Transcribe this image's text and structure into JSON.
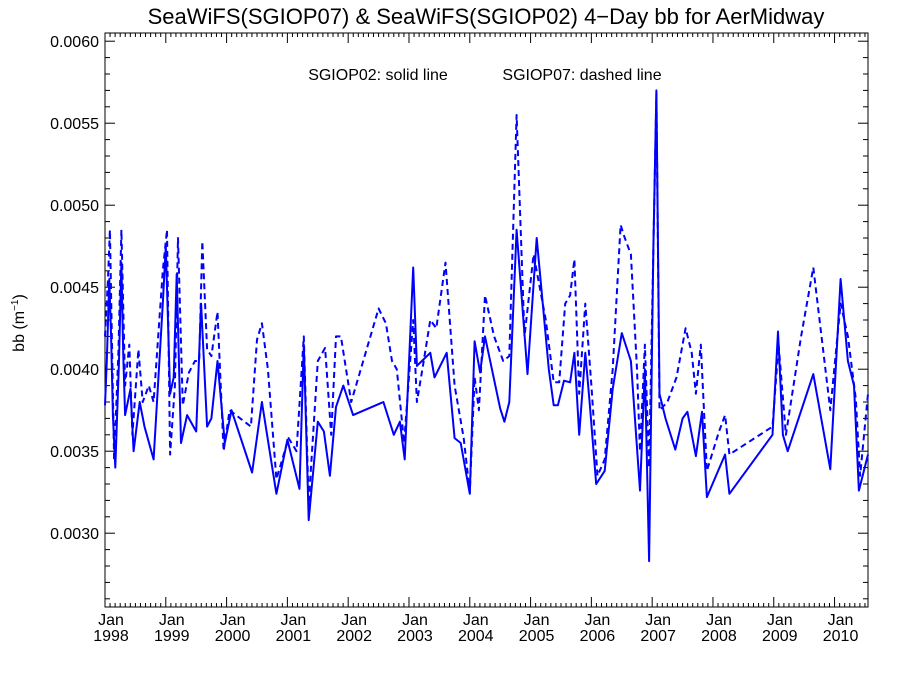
{
  "chart_data": {
    "type": "line",
    "title": "SeaWiFS(SGIOP07) & SeaWiFS(SGIOP02) 4−Day bb for AerMidway",
    "annotation_solid": "SGIOP02: solid line",
    "annotation_dashed": "SGIOP07: dashed line",
    "ylabel_main": "bb (m",
    "ylabel_sup": "−1",
    "ylabel_close": ")",
    "ylim": [
      0.00255,
      0.00605
    ],
    "xlim": [
      1998.0,
      2010.55
    ],
    "grid": false,
    "line_color": "#0000ff",
    "yticks": [
      {
        "value": 0.003,
        "label": "0.0030"
      },
      {
        "value": 0.0035,
        "label": "0.0035"
      },
      {
        "value": 0.004,
        "label": "0.0040"
      },
      {
        "value": 0.0045,
        "label": "0.0045"
      },
      {
        "value": 0.005,
        "label": "0.0050"
      },
      {
        "value": 0.0055,
        "label": "0.0055"
      },
      {
        "value": 0.006,
        "label": "0.0060"
      }
    ],
    "xticks": [
      {
        "value": 1998,
        "month": "Jan",
        "year": "1998"
      },
      {
        "value": 1999,
        "month": "Jan",
        "year": "1999"
      },
      {
        "value": 2000,
        "month": "Jan",
        "year": "2000"
      },
      {
        "value": 2001,
        "month": "Jan",
        "year": "2001"
      },
      {
        "value": 2002,
        "month": "Jan",
        "year": "2002"
      },
      {
        "value": 2003,
        "month": "Jan",
        "year": "2003"
      },
      {
        "value": 2004,
        "month": "Jan",
        "year": "2004"
      },
      {
        "value": 2005,
        "month": "Jan",
        "year": "2005"
      },
      {
        "value": 2006,
        "month": "Jan",
        "year": "2006"
      },
      {
        "value": 2007,
        "month": "Jan",
        "year": "2007"
      },
      {
        "value": 2008,
        "month": "Jan",
        "year": "2008"
      },
      {
        "value": 2009,
        "month": "Jan",
        "year": "2009"
      },
      {
        "value": 2010,
        "month": "Jan",
        "year": "2010"
      }
    ],
    "series": [
      {
        "style": "solid",
        "points": [
          [
            1998.0,
            0.00378
          ],
          [
            1998.03,
            0.00405
          ],
          [
            1998.07,
            0.00455
          ],
          [
            1998.1,
            0.0042
          ],
          [
            1998.13,
            0.00372
          ],
          [
            1998.17,
            0.0034
          ],
          [
            1998.23,
            0.00405
          ],
          [
            1998.27,
            0.00465
          ],
          [
            1998.3,
            0.0041
          ],
          [
            1998.33,
            0.00372
          ],
          [
            1998.42,
            0.00388
          ],
          [
            1998.47,
            0.0035
          ],
          [
            1998.57,
            0.0038
          ],
          [
            1998.65,
            0.00365
          ],
          [
            1998.8,
            0.00345
          ],
          [
            1998.95,
            0.0044
          ],
          [
            1999.0,
            0.00475
          ],
          [
            1999.07,
            0.00385
          ],
          [
            1999.13,
            0.00395
          ],
          [
            1999.18,
            0.00458
          ],
          [
            1999.25,
            0.00355
          ],
          [
            1999.35,
            0.00372
          ],
          [
            1999.5,
            0.00362
          ],
          [
            1999.58,
            0.0044
          ],
          [
            1999.68,
            0.00365
          ],
          [
            1999.75,
            0.0037
          ],
          [
            1999.85,
            0.00405
          ],
          [
            1999.97,
            0.00355
          ],
          [
            2000.08,
            0.00375
          ],
          [
            2000.42,
            0.00337
          ],
          [
            2000.58,
            0.0038
          ],
          [
            2000.82,
            0.00324
          ],
          [
            2001.0,
            0.00357
          ],
          [
            2001.2,
            0.00327
          ],
          [
            2001.27,
            0.00415
          ],
          [
            2001.35,
            0.00308
          ],
          [
            2001.5,
            0.00368
          ],
          [
            2001.6,
            0.00362
          ],
          [
            2001.7,
            0.00335
          ],
          [
            2001.8,
            0.00377
          ],
          [
            2001.92,
            0.0039
          ],
          [
            2002.08,
            0.00372
          ],
          [
            2002.58,
            0.0038
          ],
          [
            2002.75,
            0.0036
          ],
          [
            2002.85,
            0.00368
          ],
          [
            2002.93,
            0.00345
          ],
          [
            2003.07,
            0.00462
          ],
          [
            2003.13,
            0.00402
          ],
          [
            2003.35,
            0.0041
          ],
          [
            2003.42,
            0.00395
          ],
          [
            2003.62,
            0.0041
          ],
          [
            2003.75,
            0.00358
          ],
          [
            2003.85,
            0.00355
          ],
          [
            2004.0,
            0.00324
          ],
          [
            2004.08,
            0.00417
          ],
          [
            2004.17,
            0.00398
          ],
          [
            2004.25,
            0.0042
          ],
          [
            2004.5,
            0.00376
          ],
          [
            2004.57,
            0.00368
          ],
          [
            2004.65,
            0.0038
          ],
          [
            2004.77,
            0.00485
          ],
          [
            2004.95,
            0.00397
          ],
          [
            2005.1,
            0.0048
          ],
          [
            2005.3,
            0.004
          ],
          [
            2005.38,
            0.00378
          ],
          [
            2005.45,
            0.00378
          ],
          [
            2005.55,
            0.00393
          ],
          [
            2005.65,
            0.00392
          ],
          [
            2005.72,
            0.0041
          ],
          [
            2005.8,
            0.0036
          ],
          [
            2005.9,
            0.0041
          ],
          [
            2005.97,
            0.0038
          ],
          [
            2006.08,
            0.0033
          ],
          [
            2006.22,
            0.00338
          ],
          [
            2006.35,
            0.00388
          ],
          [
            2006.5,
            0.00422
          ],
          [
            2006.65,
            0.00405
          ],
          [
            2006.8,
            0.00326
          ],
          [
            2006.88,
            0.004
          ],
          [
            2006.95,
            0.00283
          ],
          [
            2007.02,
            0.00475
          ],
          [
            2007.07,
            0.0057
          ],
          [
            2007.12,
            0.00385
          ],
          [
            2007.22,
            0.0037
          ],
          [
            2007.38,
            0.00351
          ],
          [
            2007.5,
            0.0037
          ],
          [
            2007.58,
            0.00374
          ],
          [
            2007.72,
            0.00347
          ],
          [
            2007.82,
            0.00374
          ],
          [
            2007.9,
            0.00322
          ],
          [
            2008.2,
            0.00348
          ],
          [
            2008.27,
            0.00324
          ],
          [
            2008.98,
            0.0036
          ],
          [
            2009.07,
            0.00423
          ],
          [
            2009.15,
            0.0036
          ],
          [
            2009.23,
            0.0035
          ],
          [
            2009.65,
            0.00397
          ],
          [
            2009.93,
            0.00339
          ],
          [
            2010.1,
            0.00455
          ],
          [
            2010.22,
            0.00405
          ],
          [
            2010.32,
            0.0039
          ],
          [
            2010.4,
            0.00326
          ],
          [
            2010.55,
            0.00348
          ]
        ]
      },
      {
        "style": "dashed",
        "points": [
          [
            1998.0,
            0.0042
          ],
          [
            1998.05,
            0.00455
          ],
          [
            1998.08,
            0.00485
          ],
          [
            1998.12,
            0.00405
          ],
          [
            1998.15,
            0.00345
          ],
          [
            1998.22,
            0.0041
          ],
          [
            1998.27,
            0.00485
          ],
          [
            1998.33,
            0.0039
          ],
          [
            1998.4,
            0.00415
          ],
          [
            1998.45,
            0.0036
          ],
          [
            1998.55,
            0.00412
          ],
          [
            1998.62,
            0.0038
          ],
          [
            1998.72,
            0.0039
          ],
          [
            1998.8,
            0.0038
          ],
          [
            1998.95,
            0.0046
          ],
          [
            1999.02,
            0.00485
          ],
          [
            1999.07,
            0.00348
          ],
          [
            1999.15,
            0.0039
          ],
          [
            1999.2,
            0.0048
          ],
          [
            1999.28,
            0.00378
          ],
          [
            1999.38,
            0.00398
          ],
          [
            1999.48,
            0.00405
          ],
          [
            1999.55,
            0.00405
          ],
          [
            1999.6,
            0.00478
          ],
          [
            1999.68,
            0.00412
          ],
          [
            1999.75,
            0.00408
          ],
          [
            1999.85,
            0.00435
          ],
          [
            1999.95,
            0.0035
          ],
          [
            2000.05,
            0.00375
          ],
          [
            2000.4,
            0.00365
          ],
          [
            2000.5,
            0.00418
          ],
          [
            2000.58,
            0.00428
          ],
          [
            2000.68,
            0.004
          ],
          [
            2000.82,
            0.00333
          ],
          [
            2001.02,
            0.00358
          ],
          [
            2001.15,
            0.0035
          ],
          [
            2001.27,
            0.0042
          ],
          [
            2001.35,
            0.00318
          ],
          [
            2001.5,
            0.00405
          ],
          [
            2001.62,
            0.00413
          ],
          [
            2001.72,
            0.0036
          ],
          [
            2001.8,
            0.0042
          ],
          [
            2001.88,
            0.0042
          ],
          [
            2002.05,
            0.0038
          ],
          [
            2002.5,
            0.00437
          ],
          [
            2002.62,
            0.00428
          ],
          [
            2002.72,
            0.00405
          ],
          [
            2002.8,
            0.004
          ],
          [
            2002.92,
            0.00355
          ],
          [
            2003.07,
            0.0043
          ],
          [
            2003.13,
            0.0038
          ],
          [
            2003.22,
            0.004
          ],
          [
            2003.35,
            0.0043
          ],
          [
            2003.45,
            0.00425
          ],
          [
            2003.6,
            0.00465
          ],
          [
            2003.75,
            0.0039
          ],
          [
            2003.9,
            0.00358
          ],
          [
            2004.0,
            0.00325
          ],
          [
            2004.08,
            0.00395
          ],
          [
            2004.15,
            0.00375
          ],
          [
            2004.25,
            0.00445
          ],
          [
            2004.4,
            0.0042
          ],
          [
            2004.55,
            0.00405
          ],
          [
            2004.65,
            0.00408
          ],
          [
            2004.77,
            0.00555
          ],
          [
            2004.9,
            0.0042
          ],
          [
            2005.05,
            0.0047
          ],
          [
            2005.25,
            0.0043
          ],
          [
            2005.38,
            0.00392
          ],
          [
            2005.47,
            0.00392
          ],
          [
            2005.57,
            0.0044
          ],
          [
            2005.65,
            0.00445
          ],
          [
            2005.72,
            0.00467
          ],
          [
            2005.8,
            0.00385
          ],
          [
            2005.9,
            0.0044
          ],
          [
            2006.0,
            0.0039
          ],
          [
            2006.1,
            0.00335
          ],
          [
            2006.22,
            0.00345
          ],
          [
            2006.35,
            0.004
          ],
          [
            2006.48,
            0.00488
          ],
          [
            2006.55,
            0.0048
          ],
          [
            2006.65,
            0.0047
          ],
          [
            2006.75,
            0.004
          ],
          [
            2006.8,
            0.0035
          ],
          [
            2006.88,
            0.00415
          ],
          [
            2006.95,
            0.0034
          ],
          [
            2007.07,
            0.00568
          ],
          [
            2007.12,
            0.00375
          ],
          [
            2007.25,
            0.0038
          ],
          [
            2007.4,
            0.00395
          ],
          [
            2007.55,
            0.00425
          ],
          [
            2007.65,
            0.0041
          ],
          [
            2007.72,
            0.00385
          ],
          [
            2007.8,
            0.00415
          ],
          [
            2007.9,
            0.00338
          ],
          [
            2008.1,
            0.00362
          ],
          [
            2008.2,
            0.00372
          ],
          [
            2008.27,
            0.00348
          ],
          [
            2008.98,
            0.00365
          ],
          [
            2009.08,
            0.00415
          ],
          [
            2009.2,
            0.0036
          ],
          [
            2009.45,
            0.0042
          ],
          [
            2009.65,
            0.00462
          ],
          [
            2009.93,
            0.00375
          ],
          [
            2010.1,
            0.0044
          ],
          [
            2010.22,
            0.0042
          ],
          [
            2010.35,
            0.00382
          ],
          [
            2010.42,
            0.00335
          ],
          [
            2010.55,
            0.00385
          ]
        ]
      }
    ]
  }
}
